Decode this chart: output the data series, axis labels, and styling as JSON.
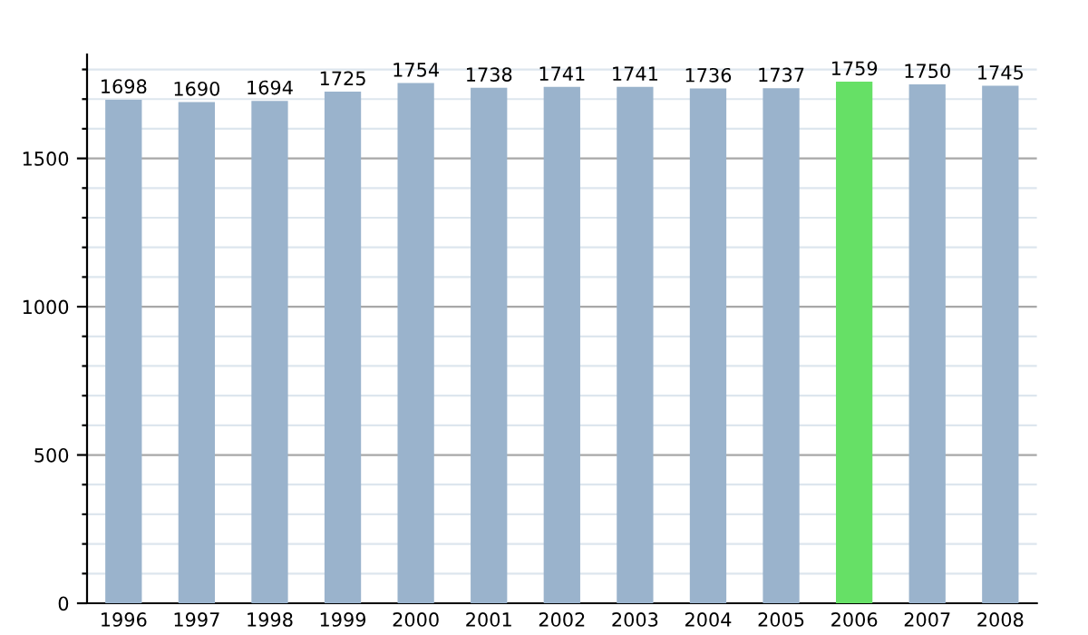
{
  "chart_data": {
    "type": "bar",
    "categories": [
      "1996",
      "1997",
      "1998",
      "1999",
      "2000",
      "2001",
      "2002",
      "2003",
      "2004",
      "2005",
      "2006",
      "2007",
      "2008"
    ],
    "values": [
      1698,
      1690,
      1694,
      1725,
      1754,
      1738,
      1741,
      1741,
      1736,
      1737,
      1759,
      1750,
      1745
    ],
    "colors": [
      "#9ab3cc",
      "#9ab3cc",
      "#9ab3cc",
      "#9ab3cc",
      "#9ab3cc",
      "#9ab3cc",
      "#9ab3cc",
      "#9ab3cc",
      "#9ab3cc",
      "#9ab3cc",
      "#66e066",
      "#9ab3cc",
      "#9ab3cc"
    ],
    "ylim": [
      0,
      1850
    ],
    "yticks": [
      0,
      {
        "value": 100,
        "label": null
      },
      {
        "value": 200,
        "label": null
      },
      {
        "value": 300,
        "label": null
      },
      {
        "value": 400,
        "label": null
      },
      500,
      {
        "value": 600,
        "label": null
      },
      {
        "value": 700,
        "label": null
      },
      {
        "value": 800,
        "label": null
      },
      {
        "value": 900,
        "label": null
      },
      1000,
      {
        "value": 1100,
        "label": null
      },
      {
        "value": 1200,
        "label": null
      },
      {
        "value": 1300,
        "label": null
      },
      {
        "value": 1400,
        "label": null
      },
      1500,
      {
        "value": 1600,
        "label": null
      },
      {
        "value": 1700,
        "label": null
      },
      {
        "value": 1800,
        "label": null
      }
    ],
    "grid": "y",
    "data_labels": true
  }
}
